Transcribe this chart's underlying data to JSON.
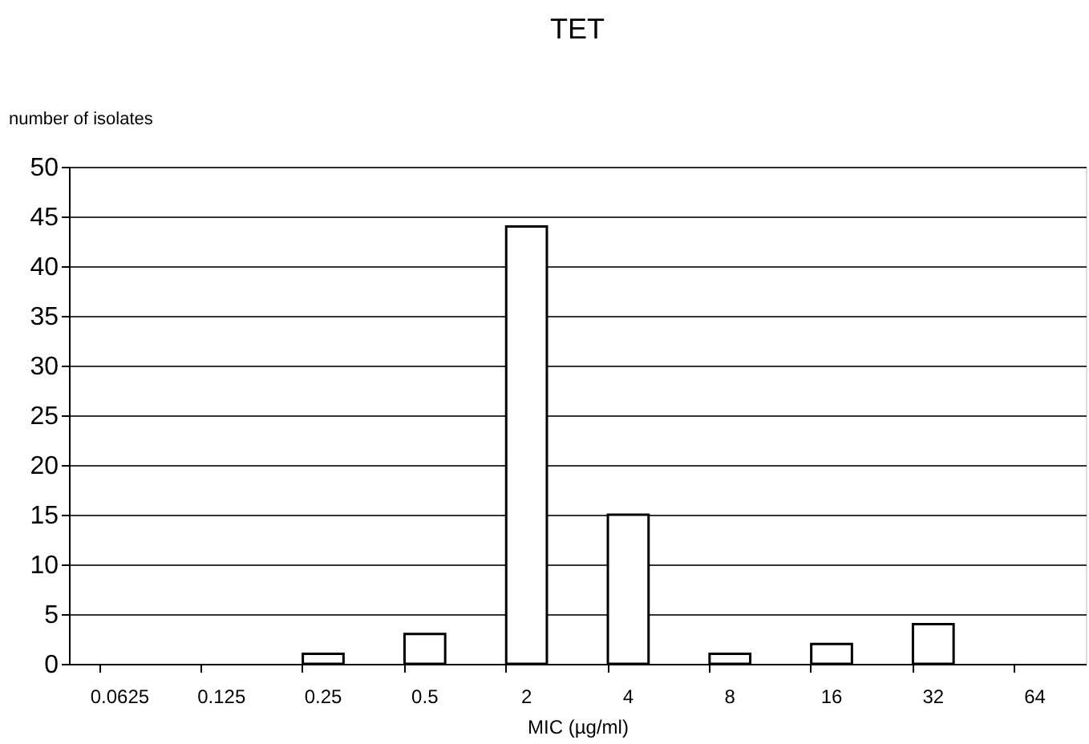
{
  "chart_data": {
    "type": "bar",
    "title": "TET",
    "xlabel": "MIC (µg/ml)",
    "ylabel": "number of isolates",
    "categories": [
      "0.0625",
      "0.125",
      "0.25",
      "0.5",
      "2",
      "4",
      "8",
      "16",
      "32",
      "64"
    ],
    "values": [
      0,
      0,
      1,
      3,
      44,
      15,
      1,
      2,
      4,
      0
    ],
    "color": "#ffffff",
    "ylim": [
      0,
      50
    ],
    "yticks": [
      0,
      5,
      10,
      15,
      20,
      25,
      30,
      35,
      40,
      45,
      50
    ],
    "grid": "y"
  }
}
